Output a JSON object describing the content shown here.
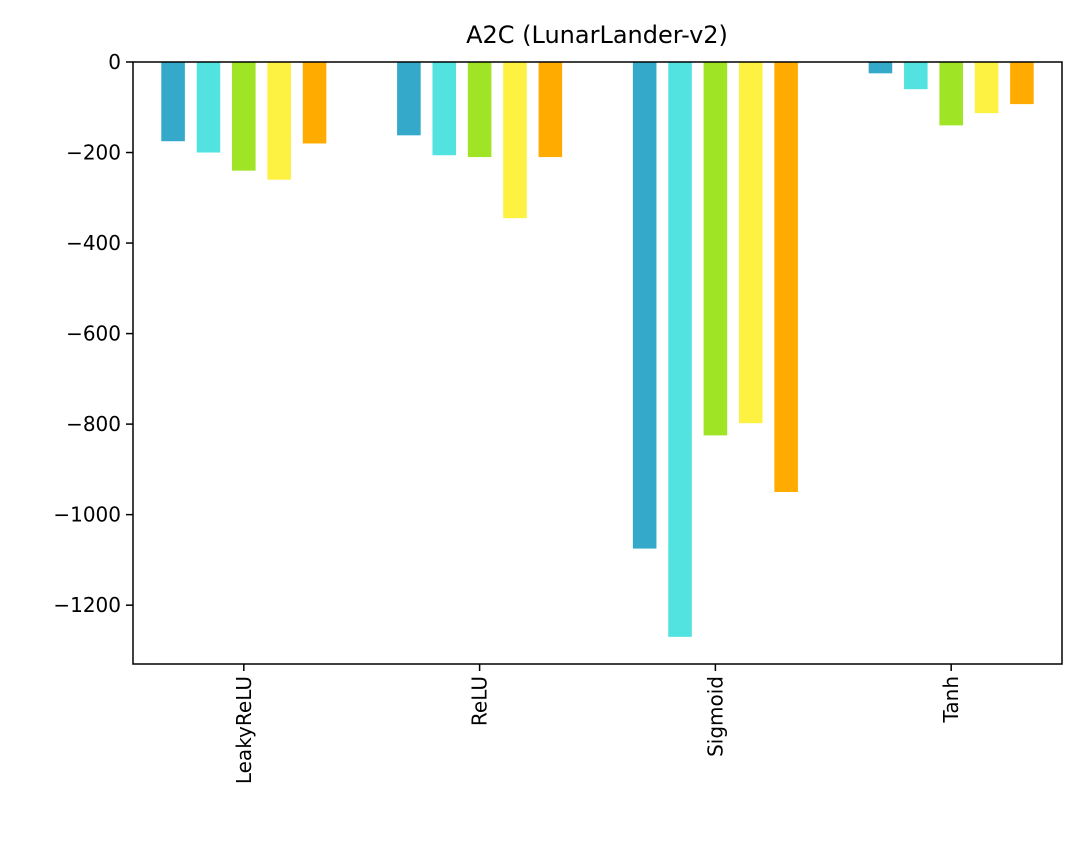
{
  "chart_data": {
    "type": "bar",
    "title": "A2C (LunarLander-v2)",
    "xlabel": "",
    "ylabel": "",
    "categories": [
      "LeakyReLU",
      "ReLU",
      "Sigmoid",
      "Tanh"
    ],
    "series": [
      {
        "color": "#34a9c9",
        "values": [
          -175,
          -162,
          -1075,
          -25
        ]
      },
      {
        "color": "#52e3e1",
        "values": [
          -200,
          -206,
          -1270,
          -60
        ]
      },
      {
        "color": "#a0e426",
        "values": [
          -240,
          -210,
          -825,
          -140
        ]
      },
      {
        "color": "#fdf142",
        "values": [
          -260,
          -345,
          -798,
          -113
        ]
      },
      {
        "color": "#ffab00",
        "values": [
          -180,
          -210,
          -950,
          -93
        ]
      }
    ],
    "ylim": [
      -1330,
      0
    ],
    "yticks": [
      0,
      -200,
      -400,
      -600,
      -800,
      -1000,
      -1200
    ],
    "ytick_labels": [
      "0",
      "−200",
      "−400",
      "−600",
      "−800",
      "−1000",
      "−1200"
    ],
    "grid": false,
    "legend": "none"
  }
}
